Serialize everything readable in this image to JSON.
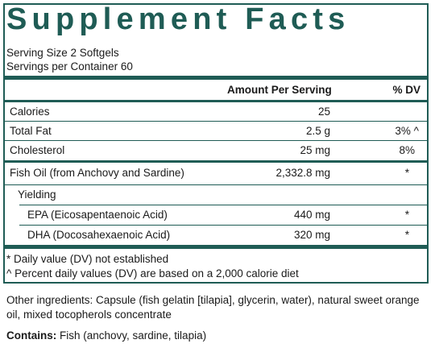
{
  "title": "Supplement Facts",
  "serving_size": "Serving Size 2 Softgels",
  "servings_per_container": "Servings per Container 60",
  "header": {
    "amount": "Amount Per Serving",
    "dv": "% DV"
  },
  "rows": [
    {
      "label": "Calories",
      "amount": "25",
      "dv": ""
    },
    {
      "label": "Total Fat",
      "amount": "2.5 g",
      "dv": "3% ^"
    },
    {
      "label": "Cholesterol",
      "amount": "25 mg",
      "dv": "8%"
    },
    {
      "label": "Fish Oil (from Anchovy and Sardine)",
      "amount": "2,332.8 mg",
      "dv": "*"
    },
    {
      "label": "Yielding",
      "amount": "",
      "dv": ""
    },
    {
      "label": "EPA (Eicosapentaenoic Acid)",
      "amount": "440 mg",
      "dv": "*"
    },
    {
      "label": "DHA (Docosahexaenoic Acid)",
      "amount": "320 mg",
      "dv": "*"
    }
  ],
  "footnotes": [
    "* Daily value (DV) not established",
    "^ Percent daily values (DV) are based on a 2,000 calorie diet"
  ],
  "other_ingredients": "Other ingredients: Capsule (fish gelatin [tilapia], glycerin, water), natural sweet orange oil, mixed tocopherols concentrate",
  "contains": {
    "label": "Contains:",
    "text": " Fish (anchovy, sardine, tilapia)"
  }
}
